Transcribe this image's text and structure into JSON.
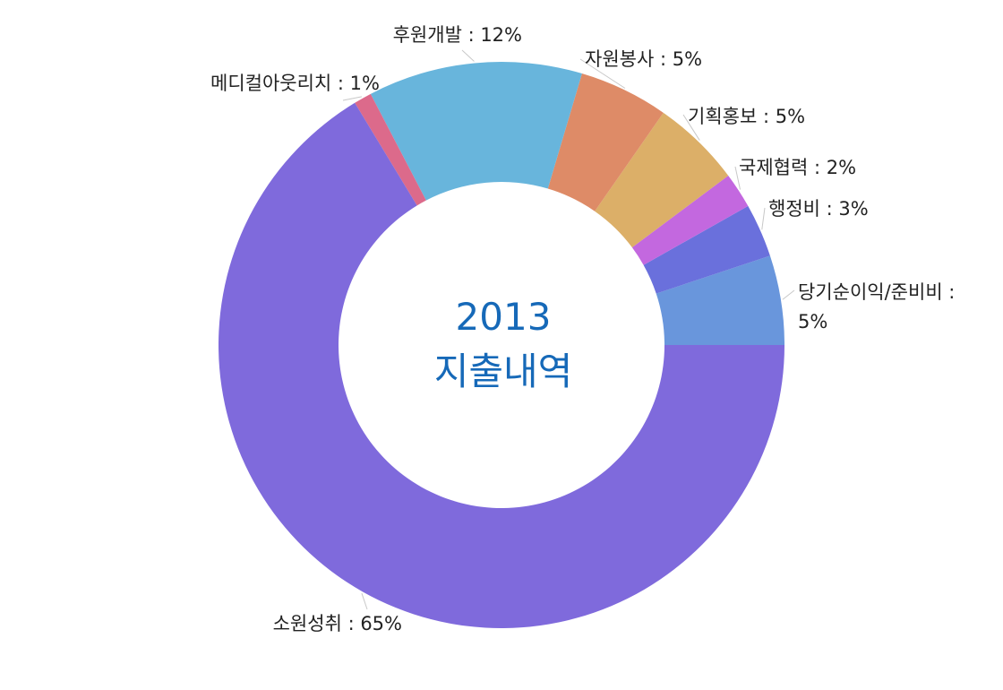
{
  "chart_data": {
    "type": "pie",
    "subtype": "donut",
    "center_text": [
      "2013",
      "지출내역"
    ],
    "slices": [
      {
        "label": "당기순이익/준비비",
        "value": 5,
        "color": "#6996dc"
      },
      {
        "label": "행정비",
        "value": 3,
        "color": "#6a70dc"
      },
      {
        "label": "국제협력",
        "value": 2,
        "color": "#c368df"
      },
      {
        "label": "기획홍보",
        "value": 5,
        "color": "#dcaf68"
      },
      {
        "label": "자원봉사",
        "value": 5,
        "color": "#de8b67"
      },
      {
        "label": "후원개발",
        "value": 12,
        "color": "#68b5dc"
      },
      {
        "label": "메디컬아웃리치",
        "value": 1,
        "color": "#dc6a8b"
      },
      {
        "label": "소원성취",
        "value": 65,
        "color": "#7f6adc"
      }
    ],
    "display_labels": [
      {
        "text": "당기순이익/준비비 :"
      },
      {
        "text": "5%"
      },
      {
        "text": "행정비 : 3%"
      },
      {
        "text": "국제협력 : 2%"
      },
      {
        "text": "기획홍보 : 5%"
      },
      {
        "text": "자원봉사 : 5%"
      },
      {
        "text": "후원개발 : 12%"
      },
      {
        "text": "메디컬아웃리치 : 1%"
      },
      {
        "text": "소원성취 : 65%"
      }
    ]
  }
}
